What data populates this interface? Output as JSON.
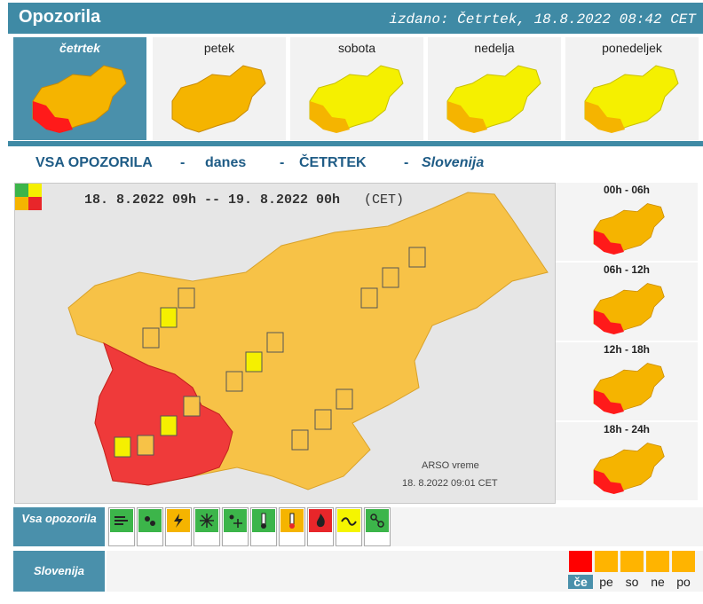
{
  "header": {
    "title": "Opozorila",
    "issued": "izdano: Četrtek, 18.8.2022 08:42 CET"
  },
  "days": [
    {
      "label": "četrtek",
      "active": true
    },
    {
      "label": "petek",
      "active": false
    },
    {
      "label": "sobota",
      "active": false
    },
    {
      "label": "nedelja",
      "active": false
    },
    {
      "label": "ponedeljek",
      "active": false
    }
  ],
  "subtitle": {
    "a": "VSA OPOZORILA",
    "dash1": "-",
    "b": "danes",
    "dash2": "-",
    "c": "ČETRTEK",
    "dash3": "-",
    "d": "Slovenija"
  },
  "main_map": {
    "time_range": "18. 8.2022 09h -- 19. 8.2022 00h",
    "tz": "(CET)",
    "source": "ARSO vreme",
    "stamp": "18. 8.2022 09:01 CET"
  },
  "periods": [
    {
      "label": "00h - 06h"
    },
    {
      "label": "06h - 12h"
    },
    {
      "label": "12h - 18h"
    },
    {
      "label": "18h - 24h"
    }
  ],
  "rows": {
    "all": "Vsa opozorila",
    "region": "Slovenija"
  },
  "hazards": [
    {
      "icon": "wind-icon",
      "color": "#3cb54a"
    },
    {
      "icon": "rain-icon",
      "color": "#3cb54a"
    },
    {
      "icon": "thunderstorm-icon",
      "color": "#f5b400"
    },
    {
      "icon": "snow-icon",
      "color": "#3cb54a"
    },
    {
      "icon": "snow-ice-icon",
      "color": "#3cb54a"
    },
    {
      "icon": "low-temperature-icon",
      "color": "#3cb54a"
    },
    {
      "icon": "high-temperature-icon",
      "color": "#f5b400"
    },
    {
      "icon": "fire-icon",
      "color": "#e8262a"
    },
    {
      "icon": "coastal-event-icon",
      "color": "#f5f500"
    },
    {
      "icon": "avalanche-icon",
      "color": "#3cb54a"
    }
  ],
  "slovenia_days": [
    {
      "label": "če",
      "color": "#ff0000",
      "active": true
    },
    {
      "label": "pe",
      "color": "#ffb400",
      "active": false
    },
    {
      "label": "so",
      "color": "#ffb400",
      "active": false
    },
    {
      "label": "ne",
      "color": "#ffb400",
      "active": false
    },
    {
      "label": "po",
      "color": "#ffb400",
      "active": false
    }
  ],
  "colors": {
    "accent": "#3f8aa5",
    "orange": "#f5b400",
    "red": "#ee2a24",
    "yellow": "#f5f000",
    "map_orange": "#f7c247",
    "map_red": "#ef3a3a"
  }
}
